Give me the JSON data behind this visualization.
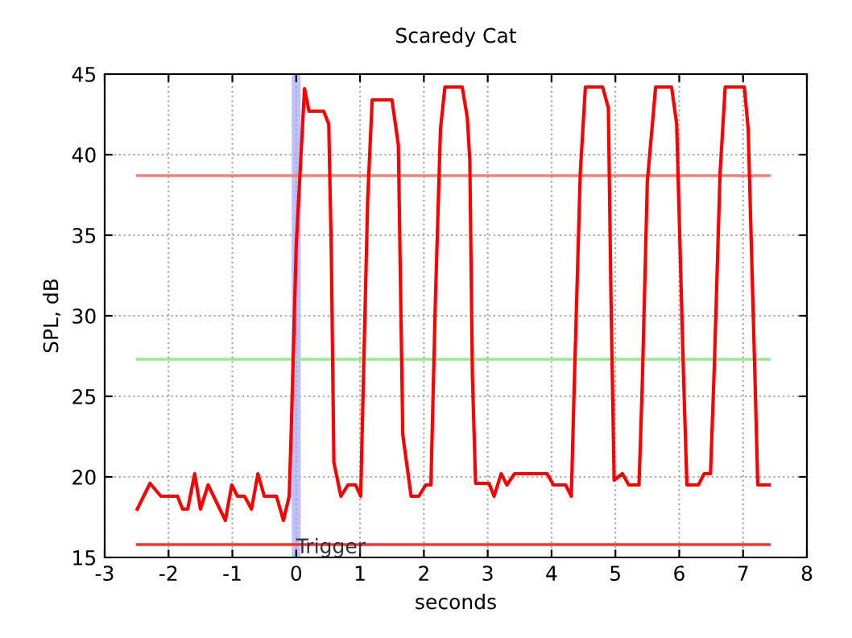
{
  "chart_data": {
    "type": "line",
    "title": "Scaredy Cat",
    "xlabel": "seconds",
    "ylabel": "SPL, dB",
    "xlim": [
      -3,
      8
    ],
    "xticks": [
      -3,
      -2,
      -1,
      0,
      1,
      2,
      3,
      4,
      5,
      6,
      7,
      8
    ],
    "ylim": [
      15,
      45
    ],
    "yticks": [
      15,
      20,
      25,
      30,
      35,
      40,
      45
    ],
    "grid": true,
    "line_style": "solid",
    "marker": "none",
    "series": [
      {
        "color": "#ff0000",
        "x": [
          -2.49,
          -2.29,
          -2.12,
          -1.86,
          -1.78,
          -1.7,
          -1.59,
          -1.5,
          -1.38,
          -1.11,
          -1.01,
          -0.92,
          -0.81,
          -0.7,
          -0.6,
          -0.5,
          -0.31,
          -0.2,
          -0.11,
          -0.08,
          0.0,
          0.07,
          0.13,
          0.2,
          0.43,
          0.51,
          0.55,
          0.59,
          0.7,
          0.81,
          0.93,
          1.01,
          1.05,
          1.12,
          1.19,
          1.5,
          1.6,
          1.67,
          1.8,
          1.92,
          2.03,
          2.11,
          2.18,
          2.26,
          2.33,
          2.6,
          2.68,
          2.72,
          2.76,
          2.81,
          3.02,
          3.1,
          3.21,
          3.3,
          3.42,
          3.93,
          4.03,
          4.22,
          4.31,
          4.35,
          4.45,
          4.53,
          4.8,
          4.89,
          4.93,
          4.98,
          5.11,
          5.21,
          5.37,
          5.42,
          5.5,
          5.63,
          5.88,
          5.96,
          6.07,
          6.12,
          6.3,
          6.39,
          6.49,
          6.55,
          6.64,
          6.72,
          7.02,
          7.08,
          7.19,
          7.23,
          7.41
        ],
        "values": [
          18.0,
          19.6,
          18.8,
          18.8,
          18.0,
          18.0,
          20.2,
          18.0,
          19.5,
          17.3,
          19.5,
          18.8,
          18.8,
          18.0,
          20.2,
          18.8,
          18.8,
          17.3,
          18.8,
          22.6,
          34.3,
          39.6,
          44.1,
          42.7,
          42.7,
          41.9,
          33.9,
          20.9,
          18.8,
          19.5,
          19.5,
          18.8,
          25.6,
          37.3,
          43.4,
          43.4,
          40.6,
          22.6,
          18.8,
          18.8,
          19.5,
          19.5,
          30.9,
          41.6,
          44.2,
          44.2,
          42.3,
          39.6,
          26.3,
          19.6,
          19.6,
          18.8,
          20.2,
          19.5,
          20.2,
          20.2,
          19.5,
          19.5,
          18.8,
          24.9,
          38.9,
          44.2,
          44.2,
          42.9,
          31.3,
          19.8,
          20.2,
          19.5,
          19.5,
          25.6,
          38.3,
          44.2,
          44.2,
          41.9,
          25.9,
          19.5,
          19.5,
          20.2,
          20.2,
          26.9,
          38.9,
          44.2,
          44.2,
          41.6,
          25.6,
          19.5,
          19.5
        ]
      }
    ],
    "ref_lines": [
      {
        "axis": "y",
        "value": 38.7,
        "color": "#f08080"
      },
      {
        "axis": "y",
        "value": 27.3,
        "color": "#90ee90"
      },
      {
        "axis": "y",
        "value": 15.8,
        "color": "#ff3030"
      },
      {
        "axis": "x",
        "value": 0,
        "label": "Trigger",
        "color": "#c0c0ff"
      }
    ]
  }
}
